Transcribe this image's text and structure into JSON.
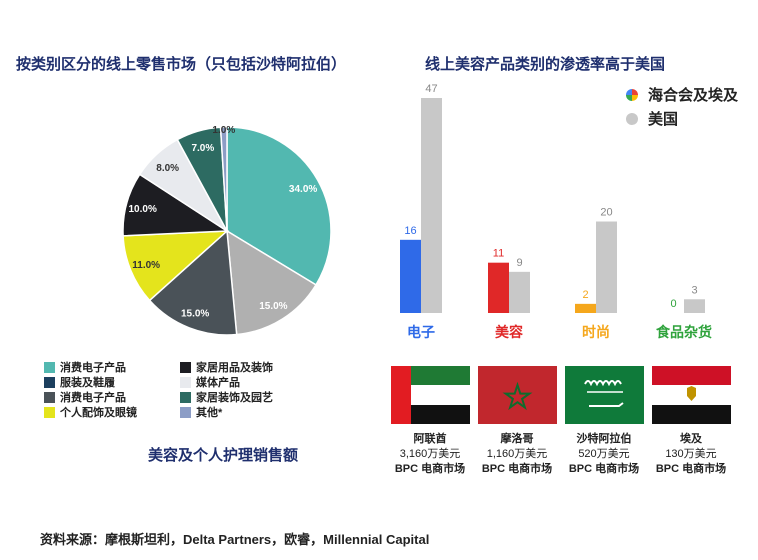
{
  "pie": {
    "title": "按类别区分的线上零售市场（只包括沙特阿拉伯）",
    "footer": "美容及个人护理销售额",
    "legend": [
      {
        "label": "消费电子产品",
        "color": "#52b8b0"
      },
      {
        "label": "服装及鞋履",
        "color": "#1c3f5e"
      },
      {
        "label": "消费电子产品",
        "color": "#4a5258"
      },
      {
        "label": "个人配饰及眼镜",
        "color": "#e4e41c"
      },
      {
        "label": "家居用品及装饰",
        "color": "#1d1d22"
      },
      {
        "label": "媒体产品",
        "color": "#e8eaee"
      },
      {
        "label": "家居装饰及园艺",
        "color": "#2d6b62"
      },
      {
        "label": "其他*",
        "color": "#8c9dc6"
      }
    ]
  },
  "bars": {
    "title": "线上美容产品类别的渗透率高于美国",
    "legend": [
      {
        "label": "海合会及埃及",
        "icon": "multicolor-dot-icon"
      },
      {
        "label": "美国",
        "color": "#c8c8c8"
      }
    ]
  },
  "markets": [
    {
      "name": "阿联酋",
      "value": "3,160万美元",
      "label": "BPC 电商市场",
      "flag": "uae-flag-icon"
    },
    {
      "name": "摩洛哥",
      "value": "1,160万美元",
      "label": "BPC 电商市场",
      "flag": "morocco-flag-icon"
    },
    {
      "name": "沙特阿拉伯",
      "value": "520万美元",
      "label": "BPC 电商市场",
      "flag": "saudi-flag-icon"
    },
    {
      "name": "埃及",
      "value": "130万美元",
      "label": "BPC 电商市场",
      "flag": "egypt-flag-icon"
    }
  ],
  "source": "资料来源：摩根斯坦利，Delta Partners，欧睿，Millennial Capital",
  "chart_data": [
    {
      "type": "pie",
      "title": "按类别区分的线上零售市场（只包括沙特阿拉伯）",
      "slices": [
        {
          "label": "消费电子产品",
          "value": 34.0,
          "display": "34.0%",
          "color": "#52b8b0"
        },
        {
          "label": "",
          "value": 15.0,
          "display": "15.0%",
          "color": "#b0b0b0"
        },
        {
          "label": "消费电子产品",
          "value": 15.0,
          "display": "15.0%",
          "color": "#4a5258"
        },
        {
          "label": "个人配饰及眼镜",
          "value": 11.0,
          "display": "11.0%",
          "color": "#e4e41c"
        },
        {
          "label": "家居用品及装饰",
          "value": 10.0,
          "display": "10.0%",
          "color": "#1d1d22"
        },
        {
          "label": "媒体产品",
          "value": 8.0,
          "display": "8.0%",
          "color": "#e8eaee"
        },
        {
          "label": "家居装饰及园艺",
          "value": 7.0,
          "display": "7.0%",
          "color": "#2d6b62"
        },
        {
          "label": "其他*",
          "value": 1.0,
          "display": "1.0%",
          "color": "#8c9dc6"
        }
      ]
    },
    {
      "type": "bar",
      "title": "线上美容产品类别的渗透率高于美国",
      "categories": [
        "电子",
        "美容",
        "时尚",
        "食品杂货"
      ],
      "category_colors": [
        "#2f6ae8",
        "#e02828",
        "#f5a71c",
        "#2fa33c"
      ],
      "series": [
        {
          "name": "海合会及埃及",
          "values": [
            16,
            11,
            2,
            0
          ],
          "colors": [
            "#2f6ae8",
            "#e02828",
            "#f5a71c",
            "#2fa33c"
          ]
        },
        {
          "name": "美国",
          "values": [
            47,
            9,
            20,
            3
          ],
          "color": "#c8c8c8"
        }
      ]
    }
  ]
}
